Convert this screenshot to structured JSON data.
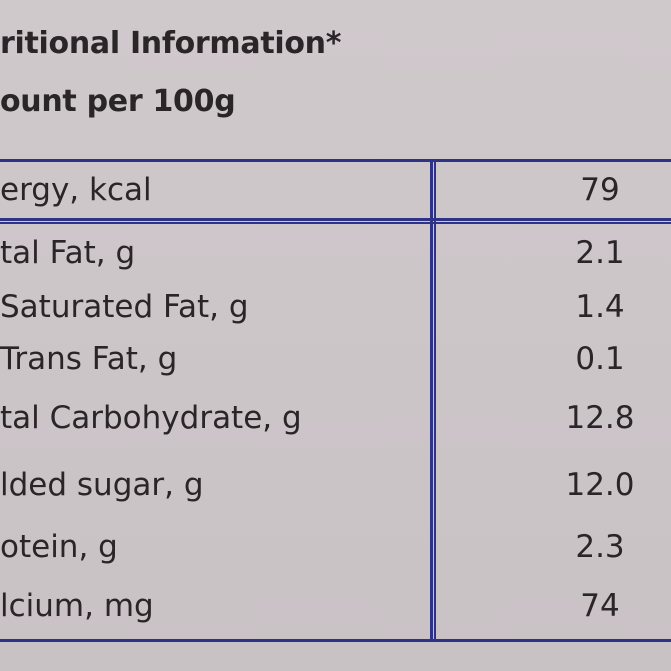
{
  "header": {
    "title": "ritional Information*",
    "subtitle": "ount per 100g"
  },
  "table": {
    "rows": [
      [
        "ergy, kcal",
        "79"
      ],
      [
        "tal Fat, g",
        "2.1"
      ],
      [
        "Saturated Fat, g",
        "1.4"
      ],
      [
        "Trans Fat, g",
        "0.1"
      ],
      [
        "tal Carbohydrate, g",
        "12.8"
      ],
      [
        "lded sugar, g",
        "12.0"
      ],
      [
        "otein, g",
        "2.3"
      ],
      [
        "lcium, mg",
        "74"
      ]
    ]
  }
}
